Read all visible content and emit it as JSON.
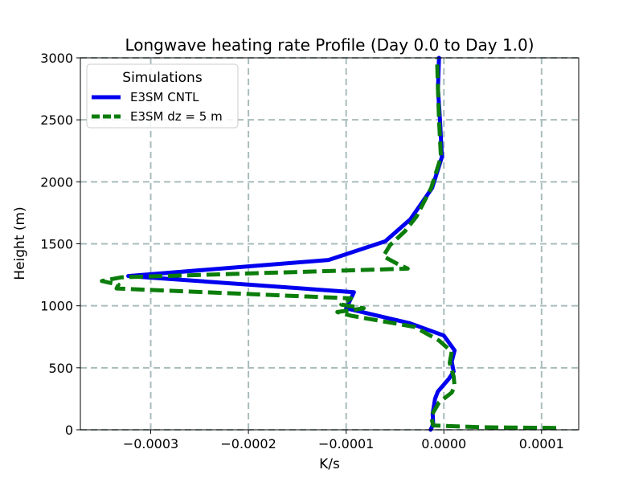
{
  "chart_data": {
    "type": "line",
    "title": "Longwave heating rate Profile (Day 0.0 to Day 1.0)",
    "xlabel": "K/s",
    "ylabel": "Height (m)",
    "xlim": [
      -0.000372,
      0.000138
    ],
    "ylim": [
      0,
      3000
    ],
    "xticks": [
      -0.0003,
      -0.0002,
      -0.0001,
      0.0,
      0.0001
    ],
    "xtick_labels": [
      "−0.0003",
      "−0.0002",
      "−0.0001",
      "0.0000",
      "0.0001"
    ],
    "yticks": [
      0,
      500,
      1000,
      1500,
      2000,
      2500,
      3000
    ],
    "ytick_labels": [
      "0",
      "500",
      "1000",
      "1500",
      "2000",
      "2500",
      "3000"
    ],
    "grid": true,
    "legend": {
      "title": "Simulations",
      "position": "top-left"
    },
    "series": [
      {
        "name": "E3SM CNTL",
        "color": "#0000ee",
        "style": "solid",
        "points": [
          [
            -1.35e-05,
            0
          ],
          [
            -1.2e-05,
            25
          ],
          [
            -1.1e-05,
            50
          ],
          [
            -1.15e-05,
            130
          ],
          [
            -9e-06,
            250
          ],
          [
            -6e-06,
            310
          ],
          [
            5e-06,
            410
          ],
          [
            1e-05,
            470
          ],
          [
            8e-06,
            550
          ],
          [
            1.1e-05,
            640
          ],
          [
            0.0,
            760
          ],
          [
            -3.5e-05,
            860
          ],
          [
            -0.0001,
            980
          ],
          [
            -9.2e-05,
            1110
          ],
          [
            -0.000323,
            1240
          ],
          [
            -0.000118,
            1370
          ],
          [
            -6e-05,
            1520
          ],
          [
            -3.4e-05,
            1700
          ],
          [
            -1.2e-05,
            1950
          ],
          [
            -2e-06,
            2200
          ],
          [
            -4e-06,
            2500
          ],
          [
            -6e-06,
            2750
          ],
          [
            -5e-06,
            3000
          ]
        ]
      },
      {
        "name": "E3SM dz = 5 m",
        "color": "#0b7d0b",
        "style": "dashed",
        "points": [
          [
            0.000115,
            15
          ],
          [
            4e-05,
            20
          ],
          [
            -1.1e-05,
            35
          ],
          [
            -1.3e-05,
            110
          ],
          [
            -5e-06,
            220
          ],
          [
            8e-06,
            300
          ],
          [
            1.1e-05,
            350
          ],
          [
            1e-05,
            430
          ],
          [
            6e-06,
            540
          ],
          [
            8e-06,
            630
          ],
          [
            -5e-06,
            720
          ],
          [
            -3e-05,
            830
          ],
          [
            -9.5e-05,
            920
          ],
          [
            -0.000109,
            950
          ],
          [
            -8.2e-05,
            980
          ],
          [
            -0.000105,
            1010
          ],
          [
            -9.5e-05,
            1060
          ],
          [
            -0.000335,
            1140
          ],
          [
            -0.000333,
            1170
          ],
          [
            -0.00035,
            1200
          ],
          [
            -0.00033,
            1230
          ],
          [
            -3.7e-05,
            1300
          ],
          [
            -4.8e-05,
            1340
          ],
          [
            -6.2e-05,
            1400
          ],
          [
            -5.5e-05,
            1490
          ],
          [
            -4e-05,
            1600
          ],
          [
            -2.8e-05,
            1720
          ],
          [
            -1.3e-05,
            1950
          ],
          [
            -3e-06,
            2200
          ],
          [
            -5e-06,
            2500
          ],
          [
            -6e-06,
            2750
          ],
          [
            -7e-06,
            3000
          ]
        ]
      }
    ]
  }
}
